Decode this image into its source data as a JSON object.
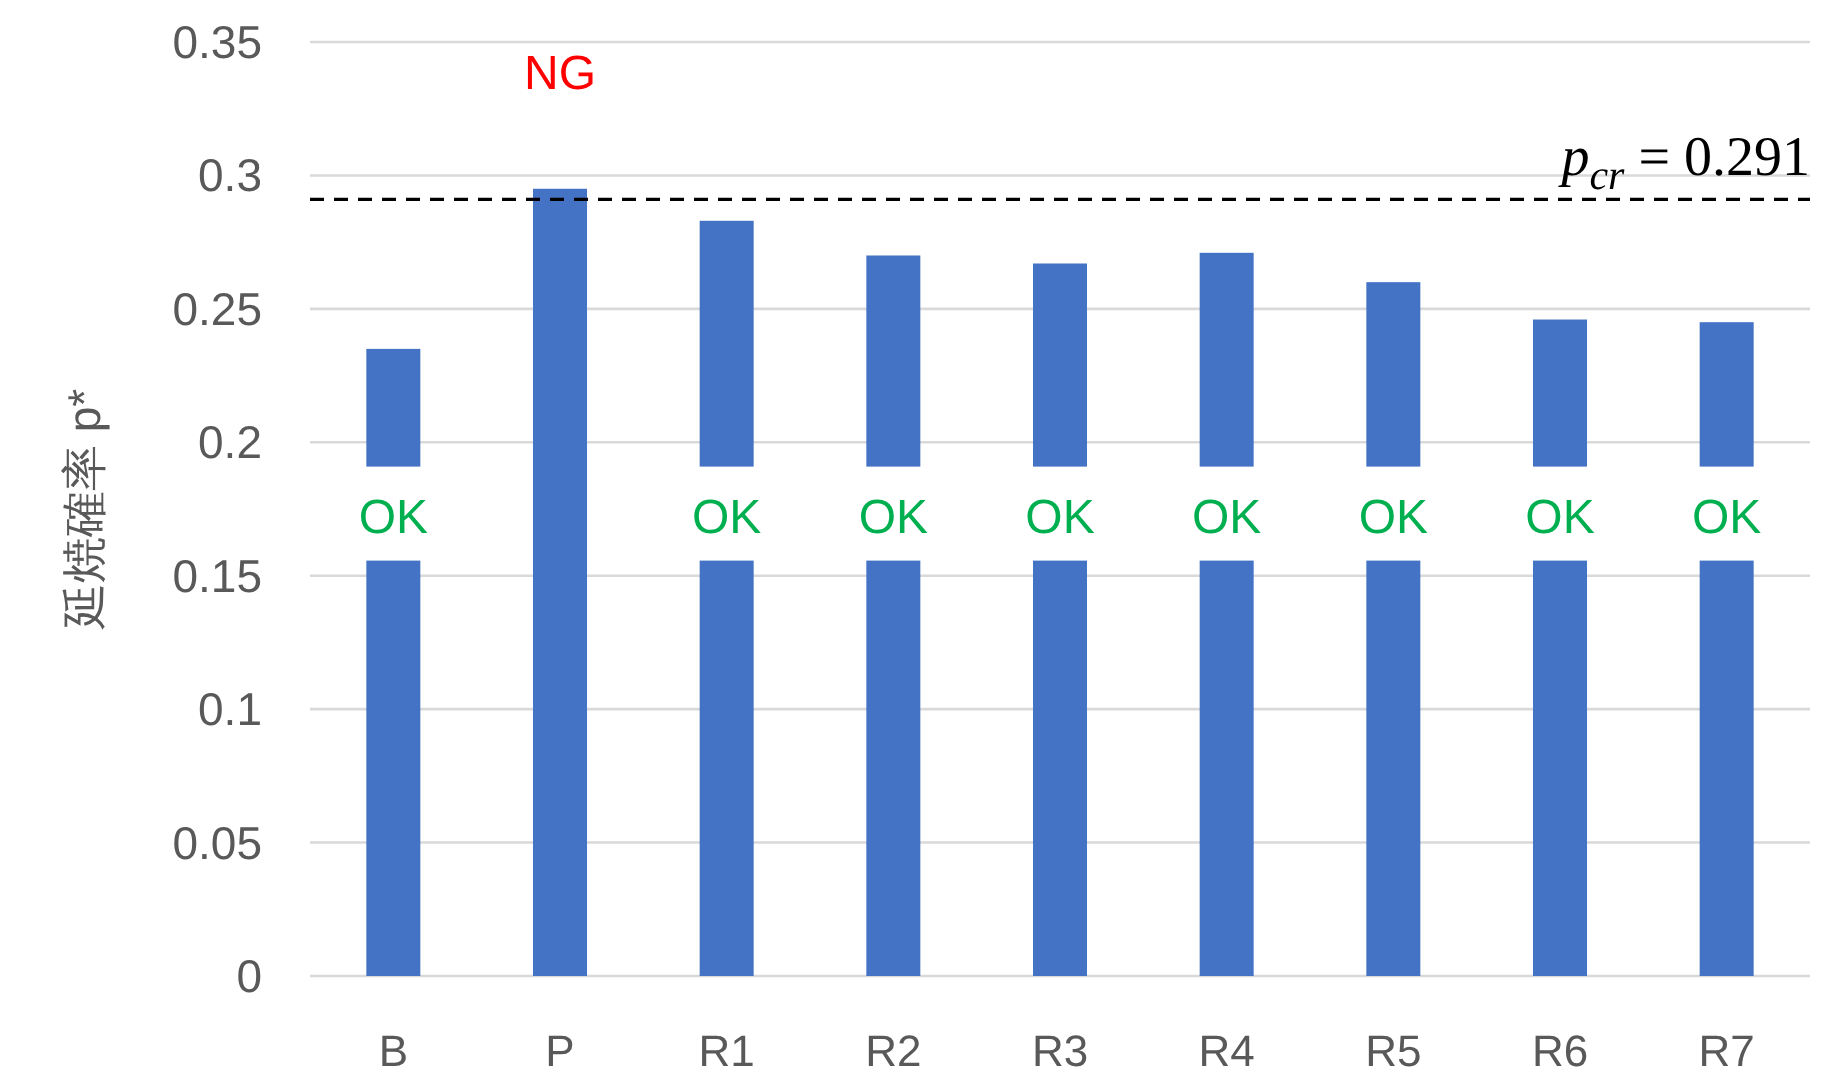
{
  "chart_data": {
    "type": "bar",
    "ylabel": "延焼確率 p*",
    "categories": [
      "B",
      "P",
      "R1",
      "R2",
      "R3",
      "R4",
      "R5",
      "R6",
      "R7"
    ],
    "values": [
      0.235,
      0.295,
      0.283,
      0.27,
      0.267,
      0.271,
      0.26,
      0.246,
      0.245
    ],
    "color": "#4472c4",
    "ylim": [
      0,
      0.35
    ],
    "yticks": [
      0,
      0.05,
      0.1,
      0.15,
      0.2,
      0.25,
      0.3,
      0.35
    ],
    "grid": "y",
    "ref_lines": [
      {
        "axis": "y",
        "value": 0.291,
        "label": "p$_{cr}$ = 0.291",
        "color": "#000000",
        "line_style": "dashed"
      }
    ],
    "annotations": [
      "OK",
      "NG",
      "OK",
      "OK",
      "OK",
      "OK",
      "OK",
      "OK",
      "OK"
    ]
  }
}
